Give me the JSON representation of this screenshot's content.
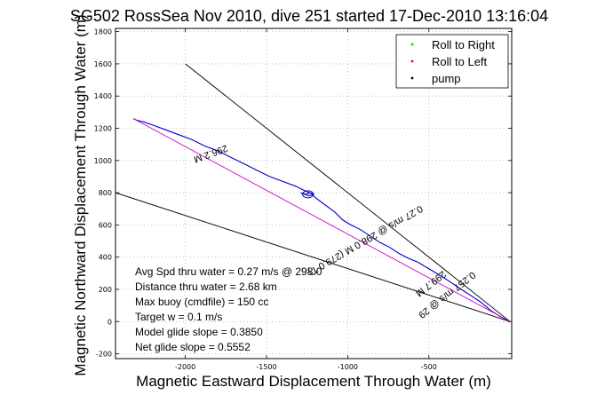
{
  "chart_data": {
    "type": "line",
    "title": "SG502 RossSea Nov 2010, dive 251 started 17-Dec-2010 13:16:04",
    "xlabel": "Magnetic Eastward Displacement Through Water (m)",
    "ylabel": "Magnetic Northward Displacement Through Water (m)",
    "xlim": [
      -2430,
      10
    ],
    "ylim": [
      -230,
      1820
    ],
    "x_ticks": [
      -2000,
      -1500,
      -1000,
      -500
    ],
    "y_ticks": [
      -200,
      0,
      200,
      400,
      600,
      800,
      1000,
      1200,
      1400,
      1600,
      1800
    ],
    "grid": true,
    "legend_position": "top-right",
    "legend": [
      {
        "label": "Roll to Right",
        "color": "#00cc00"
      },
      {
        "label": "Roll to Left",
        "color": "#ff0000"
      },
      {
        "label": "pump",
        "color": "#000000"
      }
    ],
    "series": [
      {
        "name": "track",
        "color": "#0000cc",
        "x": [
          0,
          -60,
          -120,
          -180,
          -240,
          -300,
          -360,
          -420,
          -470,
          -520,
          -570,
          -620,
          -680,
          -740,
          -800,
          -860,
          -920,
          -980,
          -1030,
          -1080,
          -1120,
          -1160,
          -1200,
          -1230,
          -1260,
          -1290,
          -1240,
          -1210,
          -1260,
          -1320,
          -1400,
          -1480,
          -1560,
          -1640,
          -1720,
          -1800,
          -1880,
          -1960,
          -2040,
          -2120,
          -2200,
          -2260,
          -2300,
          -2320
        ],
        "y": [
          0,
          30,
          70,
          120,
          160,
          200,
          240,
          280,
          310,
          340,
          370,
          390,
          420,
          460,
          490,
          530,
          570,
          600,
          630,
          680,
          710,
          740,
          770,
          800,
          790,
          800,
          780,
          790,
          810,
          840,
          870,
          900,
          940,
          980,
          1020,
          1060,
          1090,
          1130,
          1160,
          1190,
          1220,
          1240,
          1250,
          1260
        ]
      },
      {
        "name": "reference-upper",
        "color": "#000000",
        "x": [
          -2000,
          0
        ],
        "y": [
          1600,
          0
        ]
      },
      {
        "name": "reference-lower",
        "color": "#000000",
        "x": [
          -2430,
          0
        ],
        "y": [
          800,
          0
        ]
      },
      {
        "name": "reference-mid",
        "color": "#cc00cc",
        "x": [
          -2320,
          0
        ],
        "y": [
          1260,
          0
        ]
      }
    ],
    "annotations": [
      {
        "text": "296.2 M",
        "x": -1850,
        "y": 1060,
        "angle": -20
      },
      {
        "text": "0.27 m/s @ 298.0 M (279.0 T)",
        "x": -900,
        "y": 520,
        "angle": -30
      },
      {
        "text": "299.7 M",
        "x": -500,
        "y": 250,
        "angle": -38
      },
      {
        "text": "0.257 m/s @ 29",
        "x": -400,
        "y": 180,
        "angle": -38
      }
    ],
    "stats": [
      "Avg Spd thru water =  0.27 m/s @ 298.0",
      "Distance thru water = 2.68 km",
      "Max buoy (cmdfile) = 150 cc",
      "Target w = 0.1 m/s",
      "Model glide slope = 0.3850",
      "Net glide slope = 0.5552"
    ]
  }
}
